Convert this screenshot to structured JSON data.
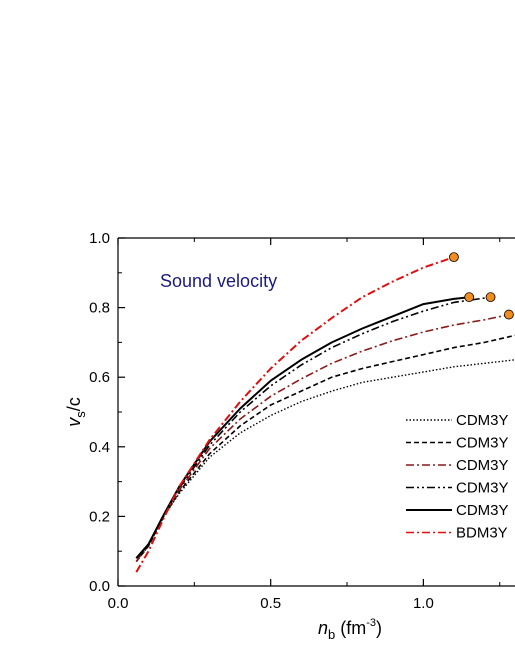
{
  "chart_data": {
    "type": "line",
    "xlabel": {
      "main": "n",
      "sub": "b",
      "unit_open": " (fm",
      "sup": "-3",
      "unit_close": ")"
    },
    "ylabel": {
      "main": "v",
      "sub": "s",
      "rest": "/c"
    },
    "xlim": [
      0.0,
      1.3
    ],
    "ylim": [
      0.0,
      1.0
    ],
    "x_ticks": [
      0.0,
      0.5,
      1.0
    ],
    "x_tick_labels": [
      "0.0",
      "0.5",
      "1.0"
    ],
    "y_ticks": [
      0.0,
      0.2,
      0.4,
      0.6,
      0.8,
      1.0
    ],
    "y_tick_labels": [
      "0.0",
      "0.2",
      "0.4",
      "0.6",
      "0.8",
      "1.0"
    ],
    "annotation": {
      "text": "Sound velocity",
      "color": "#1a1a80"
    },
    "legend_position": "right",
    "grid": false,
    "series": [
      {
        "name": "CDM3Y",
        "color": "#000000",
        "dash": "dotted",
        "x": [
          0.06,
          0.1,
          0.15,
          0.2,
          0.3,
          0.4,
          0.5,
          0.6,
          0.7,
          0.8,
          0.9,
          1.0,
          1.1,
          1.2,
          1.3
        ],
        "y": [
          0.07,
          0.115,
          0.2,
          0.265,
          0.37,
          0.44,
          0.49,
          0.53,
          0.56,
          0.585,
          0.6,
          0.615,
          0.63,
          0.64,
          0.65
        ]
      },
      {
        "name": "CDM3Y",
        "color": "#000000",
        "dash": "dashed",
        "x": [
          0.06,
          0.1,
          0.15,
          0.2,
          0.3,
          0.4,
          0.5,
          0.6,
          0.7,
          0.8,
          0.9,
          1.0,
          1.1,
          1.2,
          1.3
        ],
        "y": [
          0.07,
          0.115,
          0.2,
          0.27,
          0.38,
          0.46,
          0.52,
          0.56,
          0.6,
          0.625,
          0.645,
          0.665,
          0.685,
          0.7,
          0.72
        ]
      },
      {
        "name": "CDM3Y",
        "color": "#8b1a1a",
        "dash": "dashdot",
        "x": [
          0.06,
          0.1,
          0.15,
          0.2,
          0.3,
          0.4,
          0.5,
          0.6,
          0.7,
          0.8,
          0.9,
          1.0,
          1.1,
          1.2,
          1.28
        ],
        "y": [
          0.07,
          0.12,
          0.205,
          0.275,
          0.395,
          0.48,
          0.545,
          0.595,
          0.64,
          0.675,
          0.705,
          0.73,
          0.75,
          0.765,
          0.78
        ],
        "end_marker": true
      },
      {
        "name": "CDM3Y",
        "color": "#000000",
        "dash": "dashdotdot",
        "x": [
          0.06,
          0.1,
          0.15,
          0.2,
          0.3,
          0.4,
          0.5,
          0.6,
          0.7,
          0.8,
          0.9,
          1.0,
          1.1,
          1.22
        ],
        "y": [
          0.08,
          0.12,
          0.205,
          0.28,
          0.405,
          0.5,
          0.575,
          0.635,
          0.685,
          0.725,
          0.76,
          0.79,
          0.815,
          0.83
        ],
        "end_marker": true
      },
      {
        "name": "CDM3Y",
        "color": "#000000",
        "dash": "solid",
        "x": [
          0.06,
          0.1,
          0.15,
          0.2,
          0.3,
          0.4,
          0.5,
          0.6,
          0.7,
          0.8,
          0.9,
          1.0,
          1.1,
          1.15
        ],
        "y": [
          0.08,
          0.12,
          0.205,
          0.285,
          0.415,
          0.51,
          0.59,
          0.65,
          0.7,
          0.74,
          0.775,
          0.81,
          0.825,
          0.83
        ],
        "end_marker": true
      },
      {
        "name": "BDM3Y",
        "color": "#e01010",
        "dash": "dashdot",
        "x": [
          0.06,
          0.1,
          0.15,
          0.2,
          0.3,
          0.4,
          0.5,
          0.6,
          0.7,
          0.8,
          0.9,
          1.0,
          1.1
        ],
        "y": [
          0.04,
          0.1,
          0.195,
          0.285,
          0.42,
          0.53,
          0.625,
          0.705,
          0.77,
          0.83,
          0.875,
          0.915,
          0.945
        ],
        "end_marker": true
      }
    ],
    "marker_color": "#f28c1e"
  }
}
